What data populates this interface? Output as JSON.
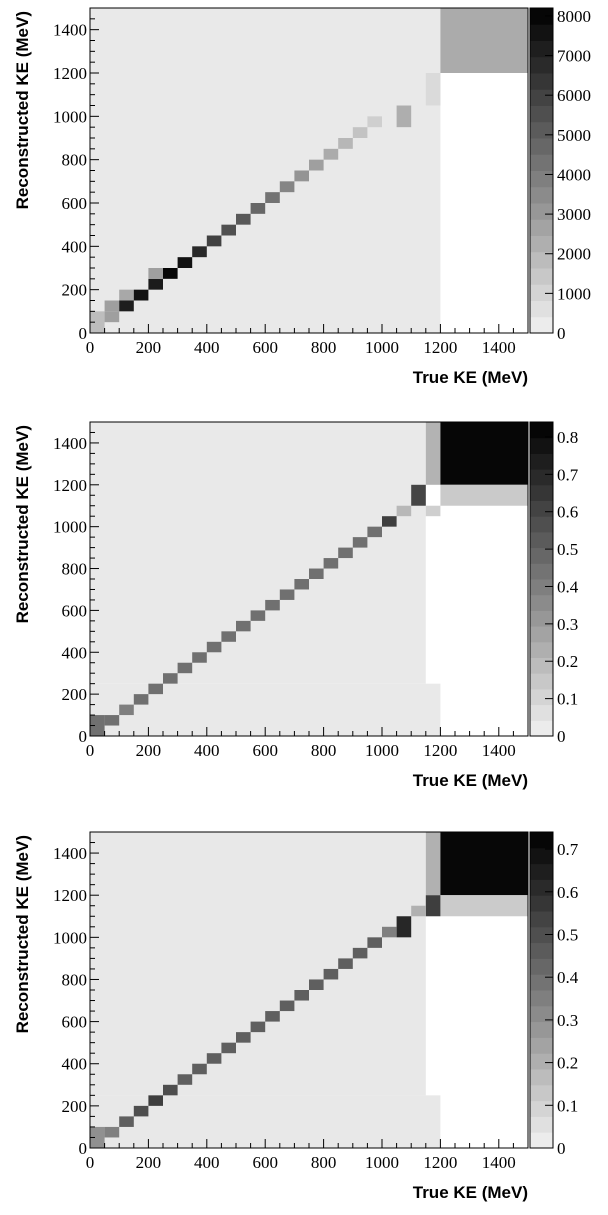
{
  "chart_data": [
    {
      "type": "heatmap",
      "xlabel": "True KE (MeV)",
      "ylabel": "Reconstructed KE (MeV)",
      "xlim": [
        0,
        1500
      ],
      "ylim": [
        0,
        1500
      ],
      "x_ticks": [
        "0",
        "200",
        "400",
        "600",
        "800",
        "1000",
        "1200",
        "1400"
      ],
      "y_ticks": [
        "0",
        "200",
        "400",
        "600",
        "800",
        "1000",
        "1200",
        "1400"
      ],
      "colorbar": {
        "range": [
          0,
          8200
        ],
        "ticks": [
          0,
          1000,
          2000,
          3000,
          4000,
          5000,
          6000,
          7000,
          8000
        ],
        "tick_labels": [
          "0",
          "1000",
          "2000",
          "3000",
          "4000",
          "5000",
          "6000",
          "7000",
          "8000"
        ]
      },
      "grid": false,
      "cells": [
        {
          "x": [
            0,
            1200
          ],
          "y": [
            1200,
            1500
          ],
          "v": 300
        },
        {
          "x": [
            1200,
            1500
          ],
          "y": [
            1200,
            1500
          ],
          "v": 2400
        },
        {
          "x": [
            0,
            1200
          ],
          "y": [
            0,
            1200
          ],
          "v": 300
        },
        {
          "x": [
            1150,
            1200
          ],
          "y": [
            1050,
            1200
          ],
          "v": 800
        },
        {
          "x": [
            1050,
            1100
          ],
          "y": [
            950,
            1050
          ],
          "v": 2300
        },
        {
          "x": [
            0,
            50
          ],
          "y": [
            0,
            100
          ],
          "v": 1800
        },
        {
          "x": [
            50,
            100
          ],
          "y": [
            50,
            100
          ],
          "v": 2800
        },
        {
          "x": [
            50,
            100
          ],
          "y": [
            100,
            150
          ],
          "v": 2800
        },
        {
          "x": [
            100,
            150
          ],
          "y": [
            100,
            150
          ],
          "v": 7200
        },
        {
          "x": [
            100,
            150
          ],
          "y": [
            150,
            200
          ],
          "v": 2500
        },
        {
          "x": [
            150,
            200
          ],
          "y": [
            150,
            200
          ],
          "v": 7600
        },
        {
          "x": [
            200,
            250
          ],
          "y": [
            200,
            250
          ],
          "v": 7300
        },
        {
          "x": [
            200,
            250
          ],
          "y": [
            250,
            300
          ],
          "v": 2800
        },
        {
          "x": [
            250,
            300
          ],
          "y": [
            250,
            300
          ],
          "v": 8000
        },
        {
          "x": [
            300,
            350
          ],
          "y": [
            300,
            350
          ],
          "v": 7600
        },
        {
          "x": [
            350,
            400
          ],
          "y": [
            350,
            400
          ],
          "v": 6800
        },
        {
          "x": [
            400,
            450
          ],
          "y": [
            400,
            450
          ],
          "v": 6000
        },
        {
          "x": [
            450,
            500
          ],
          "y": [
            450,
            500
          ],
          "v": 5500
        },
        {
          "x": [
            500,
            550
          ],
          "y": [
            500,
            550
          ],
          "v": 5200
        },
        {
          "x": [
            550,
            600
          ],
          "y": [
            550,
            600
          ],
          "v": 4700
        },
        {
          "x": [
            600,
            650
          ],
          "y": [
            600,
            650
          ],
          "v": 4300
        },
        {
          "x": [
            650,
            700
          ],
          "y": [
            650,
            700
          ],
          "v": 3700
        },
        {
          "x": [
            700,
            750
          ],
          "y": [
            700,
            750
          ],
          "v": 3200
        },
        {
          "x": [
            750,
            800
          ],
          "y": [
            750,
            800
          ],
          "v": 2800
        },
        {
          "x": [
            800,
            850
          ],
          "y": [
            800,
            850
          ],
          "v": 2400
        },
        {
          "x": [
            850,
            900
          ],
          "y": [
            850,
            900
          ],
          "v": 2000
        },
        {
          "x": [
            900,
            950
          ],
          "y": [
            900,
            950
          ],
          "v": 1600
        },
        {
          "x": [
            950,
            1000
          ],
          "y": [
            950,
            1000
          ],
          "v": 1200
        }
      ]
    },
    {
      "type": "heatmap",
      "xlabel": "True KE (MeV)",
      "ylabel": "Reconstructed KE (MeV)",
      "xlim": [
        0,
        1500
      ],
      "ylim": [
        0,
        1500
      ],
      "x_ticks": [
        "0",
        "200",
        "400",
        "600",
        "800",
        "1000",
        "1200",
        "1400"
      ],
      "y_ticks": [
        "0",
        "200",
        "400",
        "600",
        "800",
        "1000",
        "1200",
        "1400"
      ],
      "colorbar": {
        "range": [
          0,
          0.84
        ],
        "ticks": [
          0,
          0.1,
          0.2,
          0.3,
          0.4,
          0.5,
          0.6,
          0.7,
          0.8
        ],
        "tick_labels": [
          "0",
          "0.1",
          "0.2",
          "0.3",
          "0.4",
          "0.5",
          "0.6",
          "0.7",
          "0.8"
        ]
      },
      "grid": false,
      "cells": [
        {
          "x": [
            0,
            1150
          ],
          "y": [
            250,
            1500
          ],
          "v": 0.03
        },
        {
          "x": [
            0,
            1200
          ],
          "y": [
            0,
            250
          ],
          "v": 0.03
        },
        {
          "x": [
            1150,
            1200
          ],
          "y": [
            1200,
            1500
          ],
          "v": 0.22
        },
        {
          "x": [
            1200,
            1500
          ],
          "y": [
            1200,
            1500
          ],
          "v": 0.82
        },
        {
          "x": [
            1200,
            1500
          ],
          "y": [
            1100,
            1200
          ],
          "v": 0.14
        },
        {
          "x": [
            1100,
            1150
          ],
          "y": [
            1100,
            1200
          ],
          "v": 0.6
        },
        {
          "x": [
            1150,
            1200
          ],
          "y": [
            1050,
            1100
          ],
          "v": 0.12
        },
        {
          "x": [
            1050,
            1100
          ],
          "y": [
            1050,
            1100
          ],
          "v": 0.2
        },
        {
          "x": [
            1000,
            1050
          ],
          "y": [
            1000,
            1050
          ],
          "v": 0.62
        },
        {
          "x": [
            950,
            1000
          ],
          "y": [
            950,
            1000
          ],
          "v": 0.45
        },
        {
          "x": [
            0,
            50
          ],
          "y": [
            0,
            100
          ],
          "v": 0.45
        },
        {
          "x": [
            50,
            100
          ],
          "y": [
            50,
            100
          ],
          "v": 0.45
        },
        {
          "x": [
            100,
            150
          ],
          "y": [
            100,
            150
          ],
          "v": 0.4
        },
        {
          "x": [
            150,
            200
          ],
          "y": [
            150,
            200
          ],
          "v": 0.45
        },
        {
          "x": [
            200,
            250
          ],
          "y": [
            200,
            250
          ],
          "v": 0.45
        },
        {
          "x": [
            250,
            300
          ],
          "y": [
            250,
            300
          ],
          "v": 0.45
        },
        {
          "x": [
            300,
            350
          ],
          "y": [
            300,
            350
          ],
          "v": 0.45
        },
        {
          "x": [
            350,
            400
          ],
          "y": [
            350,
            400
          ],
          "v": 0.45
        },
        {
          "x": [
            400,
            450
          ],
          "y": [
            400,
            450
          ],
          "v": 0.45
        },
        {
          "x": [
            450,
            500
          ],
          "y": [
            450,
            500
          ],
          "v": 0.45
        },
        {
          "x": [
            500,
            550
          ],
          "y": [
            500,
            550
          ],
          "v": 0.45
        },
        {
          "x": [
            550,
            600
          ],
          "y": [
            550,
            600
          ],
          "v": 0.45
        },
        {
          "x": [
            600,
            650
          ],
          "y": [
            600,
            650
          ],
          "v": 0.45
        },
        {
          "x": [
            650,
            700
          ],
          "y": [
            650,
            700
          ],
          "v": 0.45
        },
        {
          "x": [
            700,
            750
          ],
          "y": [
            700,
            750
          ],
          "v": 0.45
        },
        {
          "x": [
            750,
            800
          ],
          "y": [
            750,
            800
          ],
          "v": 0.45
        },
        {
          "x": [
            800,
            850
          ],
          "y": [
            800,
            850
          ],
          "v": 0.45
        },
        {
          "x": [
            850,
            900
          ],
          "y": [
            850,
            900
          ],
          "v": 0.45
        },
        {
          "x": [
            900,
            950
          ],
          "y": [
            900,
            950
          ],
          "v": 0.45
        }
      ]
    },
    {
      "type": "heatmap",
      "xlabel": "True KE (MeV)",
      "ylabel": "Reconstructed KE (MeV)",
      "xlim": [
        0,
        1500
      ],
      "ylim": [
        0,
        1500
      ],
      "x_ticks": [
        "0",
        "200",
        "400",
        "600",
        "800",
        "1000",
        "1200",
        "1400"
      ],
      "y_ticks": [
        "0",
        "200",
        "400",
        "600",
        "800",
        "1000",
        "1200",
        "1400"
      ],
      "colorbar": {
        "range": [
          0,
          0.74
        ],
        "ticks": [
          0,
          0.1,
          0.2,
          0.3,
          0.4,
          0.5,
          0.6,
          0.7
        ],
        "tick_labels": [
          "0",
          "0.1",
          "0.2",
          "0.3",
          "0.4",
          "0.5",
          "0.6",
          "0.7"
        ]
      },
      "grid": false,
      "cells": [
        {
          "x": [
            0,
            1150
          ],
          "y": [
            250,
            1500
          ],
          "v": 0.03
        },
        {
          "x": [
            0,
            1200
          ],
          "y": [
            0,
            250
          ],
          "v": 0.03
        },
        {
          "x": [
            1150,
            1200
          ],
          "y": [
            1200,
            1500
          ],
          "v": 0.2
        },
        {
          "x": [
            1200,
            1500
          ],
          "y": [
            1200,
            1500
          ],
          "v": 0.72
        },
        {
          "x": [
            1200,
            1500
          ],
          "y": [
            1100,
            1200
          ],
          "v": 0.12
        },
        {
          "x": [
            1150,
            1200
          ],
          "y": [
            1100,
            1200
          ],
          "v": 0.55
        },
        {
          "x": [
            1100,
            1150
          ],
          "y": [
            1100,
            1150
          ],
          "v": 0.2
        },
        {
          "x": [
            1050,
            1100
          ],
          "y": [
            1000,
            1100
          ],
          "v": 0.62
        },
        {
          "x": [
            1000,
            1050
          ],
          "y": [
            1000,
            1050
          ],
          "v": 0.35
        },
        {
          "x": [
            0,
            50
          ],
          "y": [
            0,
            100
          ],
          "v": 0.3
        },
        {
          "x": [
            50,
            100
          ],
          "y": [
            50,
            100
          ],
          "v": 0.35
        },
        {
          "x": [
            100,
            150
          ],
          "y": [
            100,
            150
          ],
          "v": 0.45
        },
        {
          "x": [
            150,
            200
          ],
          "y": [
            150,
            200
          ],
          "v": 0.5
        },
        {
          "x": [
            200,
            250
          ],
          "y": [
            200,
            250
          ],
          "v": 0.55
        },
        {
          "x": [
            250,
            300
          ],
          "y": [
            250,
            300
          ],
          "v": 0.5
        },
        {
          "x": [
            300,
            350
          ],
          "y": [
            300,
            350
          ],
          "v": 0.45
        },
        {
          "x": [
            350,
            400
          ],
          "y": [
            350,
            400
          ],
          "v": 0.45
        },
        {
          "x": [
            400,
            450
          ],
          "y": [
            400,
            450
          ],
          "v": 0.45
        },
        {
          "x": [
            450,
            500
          ],
          "y": [
            450,
            500
          ],
          "v": 0.45
        },
        {
          "x": [
            500,
            550
          ],
          "y": [
            500,
            550
          ],
          "v": 0.45
        },
        {
          "x": [
            550,
            600
          ],
          "y": [
            550,
            600
          ],
          "v": 0.45
        },
        {
          "x": [
            600,
            650
          ],
          "y": [
            600,
            650
          ],
          "v": 0.45
        },
        {
          "x": [
            650,
            700
          ],
          "y": [
            650,
            700
          ],
          "v": 0.45
        },
        {
          "x": [
            700,
            750
          ],
          "y": [
            700,
            750
          ],
          "v": 0.45
        },
        {
          "x": [
            750,
            800
          ],
          "y": [
            750,
            800
          ],
          "v": 0.45
        },
        {
          "x": [
            800,
            850
          ],
          "y": [
            800,
            850
          ],
          "v": 0.45
        },
        {
          "x": [
            850,
            900
          ],
          "y": [
            850,
            900
          ],
          "v": 0.45
        },
        {
          "x": [
            900,
            950
          ],
          "y": [
            900,
            950
          ],
          "v": 0.45
        },
        {
          "x": [
            950,
            1000
          ],
          "y": [
            950,
            1000
          ],
          "v": 0.45
        }
      ]
    }
  ]
}
